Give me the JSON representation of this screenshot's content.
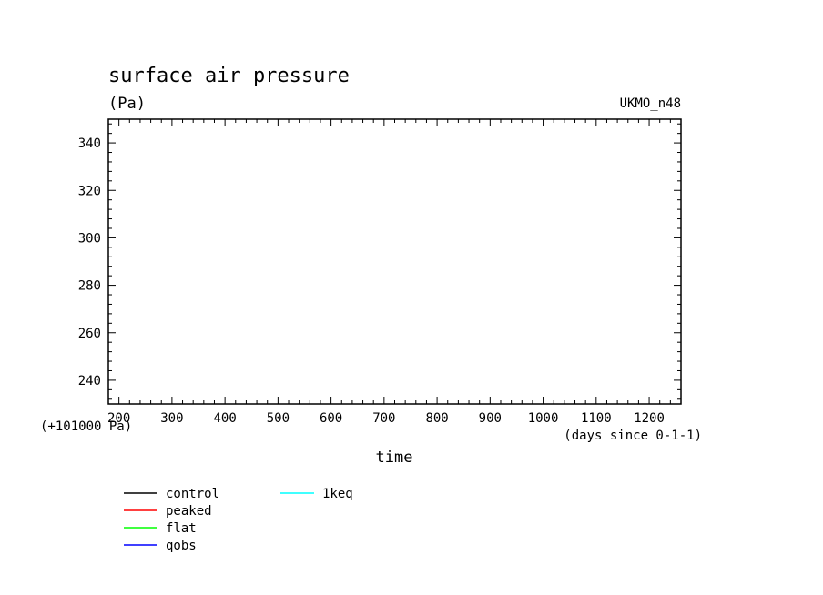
{
  "chart_data": {
    "type": "line",
    "title": "surface air pressure",
    "units": "(Pa)",
    "model": "UKMO_n48",
    "xlabel": "time",
    "x_units": "(days since 0-1-1)",
    "y_offset_label": "(+101000 Pa)",
    "xlim": [
      180,
      1260
    ],
    "ylim": [
      230,
      350
    ],
    "x_ticks": [
      200,
      300,
      400,
      500,
      600,
      700,
      800,
      900,
      1000,
      1100,
      1200
    ],
    "x_tick_labels": [
      "200",
      "300",
      "400",
      "500",
      "600",
      "700",
      "800",
      "900",
      "1000",
      "1100",
      "1200"
    ],
    "y_ticks": [
      240,
      260,
      280,
      300,
      320,
      340
    ],
    "y_tick_labels": [
      "240",
      "260",
      "280",
      "300",
      "320",
      "340"
    ],
    "grid": false,
    "legend_position": "bottom-left",
    "series": [
      {
        "name": "control",
        "color": "#000000",
        "x": [],
        "y": []
      },
      {
        "name": "peaked",
        "color": "#ff0000",
        "x": [],
        "y": []
      },
      {
        "name": "flat",
        "color": "#00ff00",
        "x": [],
        "y": []
      },
      {
        "name": "qobs",
        "color": "#0000ff",
        "x": [],
        "y": []
      },
      {
        "name": "1keq",
        "color": "#00ffff",
        "x": [],
        "y": []
      }
    ]
  }
}
